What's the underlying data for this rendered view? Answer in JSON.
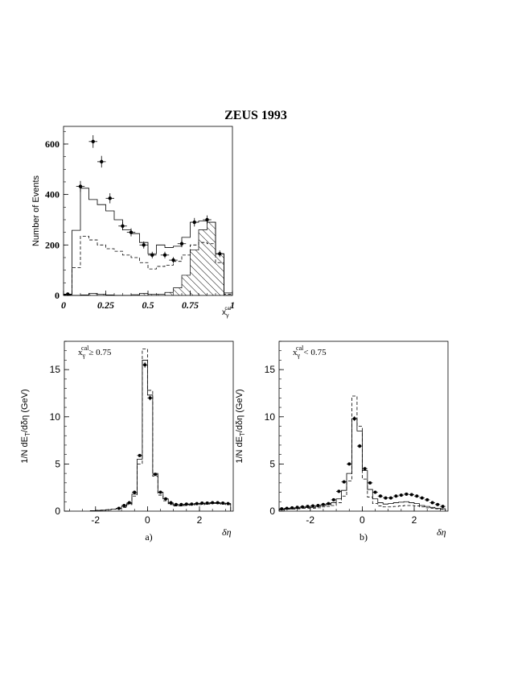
{
  "page_title": "ZEUS 1993",
  "chart_data": [
    {
      "id": "top",
      "type": "histogram",
      "title": "",
      "xlabel": "x",
      "xlabel_sub": "γ",
      "xlabel_sup": "cal",
      "ylabel": "Number of Events",
      "xlim": [
        0,
        1
      ],
      "ylim": [
        0,
        670
      ],
      "xticks": [
        0,
        0.25,
        0.5,
        0.75,
        1
      ],
      "xtick_labels": [
        "0",
        "0.25",
        "0.5",
        "0.75",
        "1"
      ],
      "yticks": [
        0,
        200,
        400,
        600
      ],
      "ytick_labels": [
        "0",
        "200",
        "400",
        "600"
      ],
      "bin_edges": [
        0,
        0.05,
        0.1,
        0.15,
        0.2,
        0.25,
        0.3,
        0.35,
        0.4,
        0.45,
        0.5,
        0.55,
        0.6,
        0.65,
        0.7,
        0.75,
        0.8,
        0.85,
        0.9,
        0.95,
        1.0
      ],
      "solid_hist": [
        5,
        258,
        425,
        380,
        360,
        335,
        300,
        260,
        245,
        210,
        165,
        200,
        190,
        195,
        230,
        290,
        295,
        290,
        165,
        10
      ],
      "dashed_hist": [
        3,
        110,
        235,
        220,
        200,
        185,
        175,
        160,
        150,
        130,
        105,
        115,
        120,
        135,
        160,
        200,
        210,
        205,
        130,
        5
      ],
      "hatched_hist": [
        0,
        0,
        2,
        8,
        5,
        2,
        0,
        0,
        3,
        8,
        5,
        5,
        12,
        30,
        80,
        180,
        260,
        290,
        165,
        0
      ],
      "points": {
        "x": [
          0.025,
          0.1,
          0.175,
          0.225,
          0.275,
          0.35,
          0.4,
          0.475,
          0.525,
          0.6,
          0.65,
          0.7,
          0.775,
          0.85,
          0.925
        ],
        "y": [
          5,
          432,
          610,
          530,
          385,
          275,
          250,
          200,
          160,
          160,
          140,
          205,
          290,
          300,
          165
        ],
        "yerr": [
          3,
          22,
          25,
          23,
          20,
          17,
          16,
          14,
          13,
          13,
          12,
          14,
          17,
          17,
          13
        ]
      }
    },
    {
      "id": "a",
      "type": "histogram",
      "panel_label": "a)",
      "annotation": "x",
      "annotation_sub": "γ",
      "annotation_sup": "cal",
      "annotation_rest": "≥ 0.75",
      "xlabel": "δη",
      "ylabel": "1/N dE",
      "ylabel_sub": "T",
      "ylabel_rest": "/dδη (GeV)",
      "xlim": [
        -3.2,
        3.3
      ],
      "ylim": [
        0,
        18
      ],
      "xticks": [
        -2,
        0,
        2
      ],
      "xtick_labels": [
        "-2",
        "0",
        "2"
      ],
      "yticks": [
        0,
        5,
        10,
        15
      ],
      "ytick_labels": [
        "0",
        "5",
        "10",
        "15"
      ],
      "bin_edges": [
        -2.2,
        -2.0,
        -1.8,
        -1.6,
        -1.4,
        -1.2,
        -1.0,
        -0.8,
        -0.6,
        -0.4,
        -0.2,
        0.0,
        0.2,
        0.4,
        0.6,
        0.8,
        1.0,
        1.2,
        1.4,
        1.6,
        1.8,
        2.0,
        2.2,
        2.4,
        2.6,
        2.8,
        3.0,
        3.2
      ],
      "solid_hist": [
        0.05,
        0.08,
        0.1,
        0.15,
        0.2,
        0.3,
        0.5,
        0.8,
        1.8,
        5.5,
        16.0,
        12.3,
        4.0,
        2.0,
        1.3,
        0.8,
        0.6,
        0.6,
        0.7,
        0.75,
        0.8,
        0.8,
        0.85,
        0.9,
        0.9,
        0.85,
        0.8
      ],
      "dashed_hist": [
        0.05,
        0.08,
        0.1,
        0.15,
        0.2,
        0.3,
        0.4,
        0.7,
        1.6,
        5.0,
        17.2,
        12.8,
        3.7,
        1.7,
        1.1,
        0.7,
        0.55,
        0.55,
        0.6,
        0.65,
        0.7,
        0.7,
        0.75,
        0.8,
        0.8,
        0.75,
        0.7
      ],
      "points": {
        "x": [
          -1.1,
          -0.9,
          -0.7,
          -0.5,
          -0.3,
          -0.1,
          0.1,
          0.3,
          0.5,
          0.7,
          0.9,
          1.1,
          1.3,
          1.5,
          1.7,
          1.9,
          2.1,
          2.3,
          2.5,
          2.7,
          2.9,
          3.1
        ],
        "y": [
          0.3,
          0.6,
          0.9,
          2.0,
          5.9,
          15.5,
          12.0,
          3.9,
          2.0,
          1.3,
          0.9,
          0.7,
          0.7,
          0.75,
          0.75,
          0.8,
          0.85,
          0.85,
          0.9,
          0.9,
          0.85,
          0.8
        ],
        "yerr": [
          0.05,
          0.05,
          0.08,
          0.1,
          0.15,
          0.3,
          0.25,
          0.12,
          0.08,
          0.06,
          0.05,
          0.05,
          0.05,
          0.05,
          0.05,
          0.05,
          0.05,
          0.05,
          0.05,
          0.05,
          0.05,
          0.05
        ]
      }
    },
    {
      "id": "b",
      "type": "histogram",
      "panel_label": "b)",
      "annotation": "x",
      "annotation_sub": "γ",
      "annotation_sup": "cal",
      "annotation_rest": "< 0.75",
      "xlabel": "δη",
      "ylabel": "1/N dE",
      "ylabel_sub": "T",
      "ylabel_rest": "/dδη (GeV)",
      "xlim": [
        -3.2,
        3.3
      ],
      "ylim": [
        0,
        18
      ],
      "xticks": [
        -2,
        0,
        2
      ],
      "xtick_labels": [
        "-2",
        "0",
        "2"
      ],
      "yticks": [
        0,
        5,
        10,
        15
      ],
      "ytick_labels": [
        "0",
        "5",
        "10",
        "15"
      ],
      "bin_edges": [
        -3.2,
        -3.0,
        -2.8,
        -2.6,
        -2.4,
        -2.2,
        -2.0,
        -1.8,
        -1.6,
        -1.4,
        -1.2,
        -1.0,
        -0.8,
        -0.6,
        -0.4,
        -0.2,
        0.0,
        0.2,
        0.4,
        0.6,
        0.8,
        1.0,
        1.2,
        1.4,
        1.6,
        1.8,
        2.0,
        2.2,
        2.4,
        2.6,
        2.8,
        3.0,
        3.2
      ],
      "solid_hist": [
        0.2,
        0.25,
        0.3,
        0.3,
        0.35,
        0.4,
        0.4,
        0.5,
        0.6,
        0.7,
        0.9,
        1.3,
        2.2,
        4.0,
        9.8,
        8.5,
        4.3,
        2.3,
        1.3,
        0.9,
        0.75,
        0.8,
        0.9,
        0.95,
        1.0,
        0.9,
        0.8,
        0.6,
        0.5,
        0.4,
        0.3,
        0.25
      ],
      "dashed_hist": [
        0.15,
        0.2,
        0.2,
        0.25,
        0.3,
        0.3,
        0.3,
        0.35,
        0.45,
        0.5,
        0.6,
        0.9,
        1.6,
        3.2,
        12.2,
        9.0,
        3.4,
        1.5,
        0.8,
        0.55,
        0.45,
        0.45,
        0.5,
        0.55,
        0.6,
        0.6,
        0.55,
        0.45,
        0.35,
        0.3,
        0.25,
        0.2
      ],
      "points": {
        "x": [
          -3.1,
          -2.9,
          -2.7,
          -2.5,
          -2.3,
          -2.1,
          -1.9,
          -1.7,
          -1.5,
          -1.3,
          -1.1,
          -0.9,
          -0.7,
          -0.5,
          -0.3,
          -0.1,
          0.1,
          0.3,
          0.5,
          0.7,
          0.9,
          1.1,
          1.3,
          1.5,
          1.7,
          1.9,
          2.1,
          2.3,
          2.5,
          2.7,
          2.9,
          3.1
        ],
        "y": [
          0.25,
          0.3,
          0.35,
          0.4,
          0.45,
          0.5,
          0.55,
          0.6,
          0.7,
          0.8,
          1.2,
          2.1,
          3.1,
          5.0,
          9.8,
          6.9,
          4.5,
          3.0,
          2.0,
          1.6,
          1.4,
          1.4,
          1.6,
          1.7,
          1.8,
          1.75,
          1.6,
          1.4,
          1.2,
          0.9,
          0.7,
          0.5
        ],
        "yerr": [
          0.04,
          0.04,
          0.04,
          0.05,
          0.05,
          0.05,
          0.05,
          0.05,
          0.05,
          0.05,
          0.06,
          0.08,
          0.1,
          0.15,
          0.25,
          0.2,
          0.15,
          0.1,
          0.08,
          0.07,
          0.06,
          0.06,
          0.06,
          0.06,
          0.06,
          0.06,
          0.06,
          0.06,
          0.05,
          0.05,
          0.05,
          0.04
        ]
      }
    }
  ]
}
